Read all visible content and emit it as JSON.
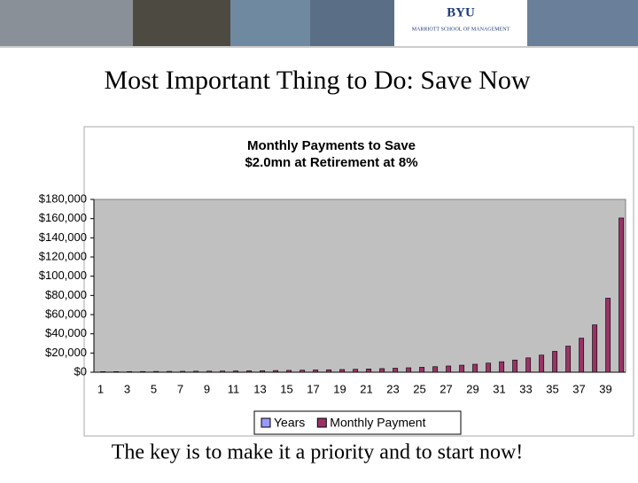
{
  "header": {
    "logo": "BYU",
    "logo_sub": "MARRIOTT SCHOOL OF MANAGEMENT"
  },
  "slide": {
    "title": "Most Important Thing to Do: Save Now",
    "caption": "The key is to make it a priority and to start now!"
  },
  "chart_data": {
    "type": "bar",
    "title": "Monthly Payments to Save",
    "subtitle": "$2.0mn at Retirement at 8%",
    "categories": [
      "1",
      null,
      "3",
      null,
      "5",
      null,
      "7",
      null,
      "9",
      null,
      "11",
      null,
      "13",
      null,
      "15",
      null,
      "17",
      null,
      "19",
      null,
      "21",
      null,
      "23",
      null,
      "25",
      null,
      "27",
      null,
      "29",
      null,
      "31",
      null,
      "33",
      null,
      "35",
      null,
      "37",
      null,
      "39",
      null
    ],
    "series": [
      {
        "name": "Years",
        "color": "#9999ff",
        "values": [
          1,
          2,
          3,
          4,
          5,
          6,
          7,
          8,
          9,
          10,
          11,
          12,
          13,
          14,
          15,
          16,
          17,
          18,
          19,
          20,
          21,
          22,
          23,
          24,
          25,
          26,
          27,
          28,
          29,
          30,
          31,
          32,
          33,
          34,
          35,
          36,
          37,
          38,
          39,
          40
        ]
      },
      {
        "name": "Monthly Payment",
        "color": "#993366",
        "values": [
          573,
          623,
          677,
          736,
          801,
          872,
          949,
          1034,
          1127,
          1230,
          1342,
          1466,
          1602,
          1752,
          1919,
          2103,
          2308,
          2536,
          2790,
          3075,
          3395,
          3757,
          4166,
          4632,
          5165,
          5780,
          6493,
          7328,
          8316,
          9500,
          10930,
          12700,
          14940,
          17840,
          21730,
          27220,
          35490,
          49340,
          77120,
          160640
        ]
      }
    ],
    "ylim": [
      0,
      180000
    ],
    "yticks": [
      {
        "value": 0,
        "label": "$0"
      },
      {
        "value": 20000,
        "label": "$20,000"
      },
      {
        "value": 40000,
        "label": "$40,000"
      },
      {
        "value": 60000,
        "label": "$60,000"
      },
      {
        "value": 80000,
        "label": "$80,000"
      },
      {
        "value": 100000,
        "label": "$100,000"
      },
      {
        "value": 120000,
        "label": "$120,000"
      },
      {
        "value": 140000,
        "label": "$140,000"
      },
      {
        "value": 160000,
        "label": "$160,000"
      },
      {
        "value": 180000,
        "label": "$180,000"
      }
    ],
    "grid": false,
    "legend": "bottom",
    "plot_background": "#c0c0c0"
  }
}
